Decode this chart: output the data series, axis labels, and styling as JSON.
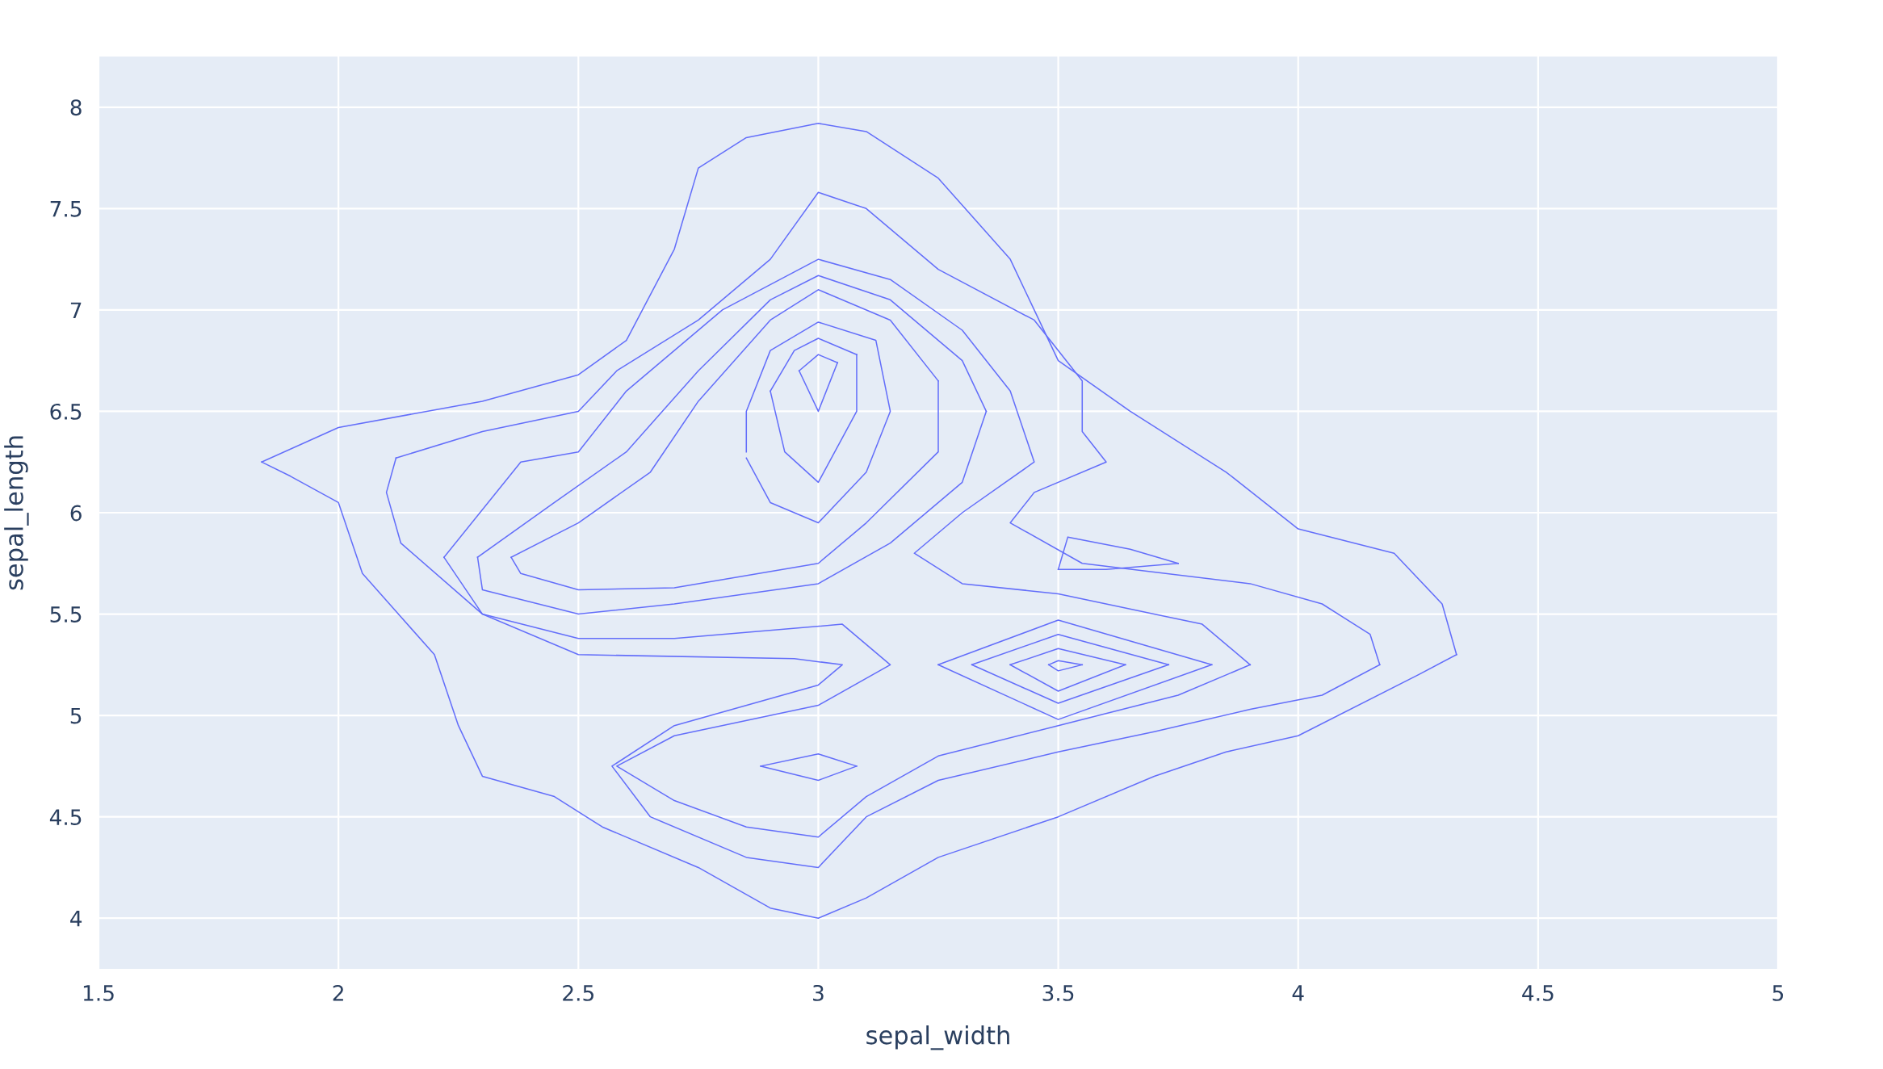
{
  "chart_data": {
    "type": "line",
    "xlabel": "sepal_width",
    "ylabel": "sepal_length",
    "xlim": [
      1.5,
      5
    ],
    "ylim": [
      3.75,
      8.25
    ],
    "xticks": [
      1.5,
      2,
      2.5,
      3,
      3.5,
      4,
      4.5,
      5
    ],
    "yticks": [
      4,
      4.5,
      5,
      5.5,
      6,
      6.5,
      7,
      7.5,
      8
    ],
    "grid": true,
    "line_style": "solid",
    "marker": "none",
    "series": [
      {
        "color": "#636efa",
        "x": [
          1.84,
          2.0,
          2.3,
          2.5,
          2.6,
          2.7,
          2.75,
          2.85,
          3.0,
          3.1,
          3.25,
          3.4,
          3.45,
          3.5,
          3.65,
          3.85,
          4.0,
          4.2,
          4.3,
          4.33
        ],
        "values": [
          6.25,
          6.42,
          6.55,
          6.68,
          6.85,
          7.3,
          7.7,
          7.85,
          7.92,
          7.88,
          7.65,
          7.25,
          7.0,
          6.75,
          6.5,
          6.2,
          5.92,
          5.8,
          5.55,
          5.3
        ]
      },
      {
        "color": "#636efa",
        "x": [
          4.33,
          4.25,
          4.0,
          3.85,
          3.7,
          3.5,
          3.25,
          3.1,
          3.0,
          2.9,
          2.75,
          2.55,
          2.45,
          2.3,
          2.25,
          2.2,
          2.05,
          2.0,
          1.9,
          1.84
        ],
        "values": [
          5.3,
          5.2,
          4.9,
          4.82,
          4.7,
          4.5,
          4.3,
          4.1,
          4.0,
          4.05,
          4.25,
          4.45,
          4.6,
          4.7,
          4.95,
          5.3,
          5.7,
          6.05,
          6.18,
          6.25
        ]
      },
      {
        "color": "#636efa",
        "x": [
          2.12,
          2.3,
          2.5,
          2.58,
          2.75,
          2.9,
          3.0,
          3.1,
          3.25,
          3.45,
          3.55,
          3.55,
          3.6,
          3.45,
          3.4,
          3.55,
          3.9,
          4.05,
          4.15,
          4.17
        ],
        "values": [
          6.27,
          6.4,
          6.5,
          6.7,
          6.95,
          7.25,
          7.58,
          7.5,
          7.2,
          6.95,
          6.65,
          6.4,
          6.25,
          6.1,
          5.95,
          5.75,
          5.65,
          5.55,
          5.4,
          5.25
        ]
      },
      {
        "color": "#636efa",
        "x": [
          4.17,
          4.05,
          3.9,
          3.7,
          3.5,
          3.25,
          3.1,
          3.0,
          2.85,
          2.65,
          2.57,
          2.7,
          3.0,
          3.05,
          2.95,
          2.5,
          2.3,
          2.13,
          2.1,
          2.12
        ],
        "values": [
          5.25,
          5.1,
          5.03,
          4.92,
          4.82,
          4.68,
          4.5,
          4.25,
          4.3,
          4.5,
          4.75,
          4.95,
          5.15,
          5.25,
          5.28,
          5.3,
          5.5,
          5.85,
          6.1,
          6.27
        ]
      },
      {
        "color": "#636efa",
        "x": [
          2.22,
          2.38,
          2.5,
          2.6,
          2.8,
          3.0,
          3.15,
          3.3,
          3.4,
          3.45,
          3.3,
          3.2,
          3.3,
          3.5,
          3.8,
          3.9
        ],
        "values": [
          5.78,
          6.25,
          6.3,
          6.6,
          7.0,
          7.25,
          7.15,
          6.9,
          6.6,
          6.25,
          6.0,
          5.8,
          5.65,
          5.6,
          5.45,
          5.25
        ]
      },
      {
        "color": "#636efa",
        "x": [
          3.9,
          3.75,
          3.5,
          3.25,
          3.1,
          3.0,
          2.85,
          2.7,
          2.58,
          2.7,
          3.0,
          3.15,
          3.05,
          2.7,
          2.5,
          2.3,
          2.22
        ],
        "values": [
          5.25,
          5.1,
          4.95,
          4.8,
          4.6,
          4.4,
          4.45,
          4.58,
          4.75,
          4.9,
          5.05,
          5.25,
          5.45,
          5.38,
          5.38,
          5.5,
          5.78
        ]
      },
      {
        "color": "#636efa",
        "x": [
          2.29,
          2.45,
          2.6,
          2.75,
          2.9,
          3.0,
          3.15,
          3.3,
          3.35
        ],
        "values": [
          5.78,
          6.05,
          6.3,
          6.7,
          7.05,
          7.17,
          7.05,
          6.75,
          6.5
        ]
      },
      {
        "color": "#636efa",
        "x": [
          3.35,
          3.3,
          3.15,
          3.0,
          2.7,
          2.5,
          2.3,
          2.29
        ],
        "values": [
          6.5,
          6.15,
          5.85,
          5.65,
          5.55,
          5.5,
          5.62,
          5.78
        ]
      },
      {
        "color": "#636efa",
        "x": [
          2.36,
          2.5,
          2.65,
          2.75,
          2.9,
          3.0,
          3.15,
          3.25
        ],
        "values": [
          5.78,
          5.95,
          6.2,
          6.55,
          6.95,
          7.1,
          6.95,
          6.65
        ]
      },
      {
        "color": "#636efa",
        "x": [
          3.25,
          3.25,
          3.1,
          3.0,
          2.7,
          2.5,
          2.38,
          2.36
        ],
        "values": [
          6.65,
          6.3,
          5.95,
          5.75,
          5.63,
          5.62,
          5.7,
          5.78
        ]
      },
      {
        "color": "#636efa",
        "x": [
          2.85,
          2.85,
          2.9,
          3.0,
          3.12,
          3.15,
          3.1,
          3.0,
          2.9,
          2.85
        ],
        "values": [
          6.3,
          6.5,
          6.8,
          6.94,
          6.85,
          6.5,
          6.2,
          5.95,
          6.05,
          6.27
        ]
      },
      {
        "color": "#636efa",
        "x": [
          2.9,
          2.95,
          3.0,
          3.08
        ],
        "values": [
          6.6,
          6.8,
          6.86,
          6.78
        ]
      },
      {
        "color": "#636efa",
        "x": [
          3.08,
          3.08,
          3.0,
          2.93,
          2.9
        ],
        "values": [
          6.78,
          6.5,
          6.15,
          6.3,
          6.6
        ]
      },
      {
        "color": "#636efa",
        "x": [
          2.96,
          3.0,
          3.04
        ],
        "values": [
          6.7,
          6.78,
          6.74
        ]
      },
      {
        "color": "#636efa",
        "x": [
          3.04,
          3.0,
          2.96
        ],
        "values": [
          6.74,
          6.5,
          6.7
        ]
      },
      {
        "color": "#636efa",
        "x": [
          3.5,
          3.52,
          3.65,
          3.75
        ],
        "values": [
          5.72,
          5.88,
          5.82,
          5.75
        ]
      },
      {
        "color": "#636efa",
        "x": [
          3.75,
          3.6,
          3.5
        ],
        "values": [
          5.75,
          5.72,
          5.72
        ]
      },
      {
        "color": "#636efa",
        "x": [
          2.88,
          3.0,
          3.08
        ],
        "values": [
          4.75,
          4.81,
          4.75
        ]
      },
      {
        "color": "#636efa",
        "x": [
          3.08,
          3.0,
          2.88
        ],
        "values": [
          4.75,
          4.68,
          4.75
        ]
      },
      {
        "color": "#636efa",
        "x": [
          3.25,
          3.5,
          3.82
        ],
        "values": [
          5.25,
          5.47,
          5.25
        ]
      },
      {
        "color": "#636efa",
        "x": [
          3.82,
          3.5,
          3.25
        ],
        "values": [
          5.25,
          4.98,
          5.25
        ]
      },
      {
        "color": "#636efa",
        "x": [
          3.32,
          3.5,
          3.73
        ],
        "values": [
          5.25,
          5.4,
          5.25
        ]
      },
      {
        "color": "#636efa",
        "x": [
          3.73,
          3.5,
          3.32
        ],
        "values": [
          5.25,
          5.06,
          5.25
        ]
      },
      {
        "color": "#636efa",
        "x": [
          3.4,
          3.5,
          3.64
        ],
        "values": [
          5.25,
          5.33,
          5.25
        ]
      },
      {
        "color": "#636efa",
        "x": [
          3.64,
          3.5,
          3.4
        ],
        "values": [
          5.25,
          5.12,
          5.25
        ]
      },
      {
        "color": "#636efa",
        "x": [
          3.48,
          3.5,
          3.55
        ],
        "values": [
          5.25,
          5.27,
          5.25
        ]
      },
      {
        "color": "#636efa",
        "x": [
          3.55,
          3.5,
          3.48
        ],
        "values": [
          5.25,
          5.22,
          5.25
        ]
      }
    ]
  }
}
